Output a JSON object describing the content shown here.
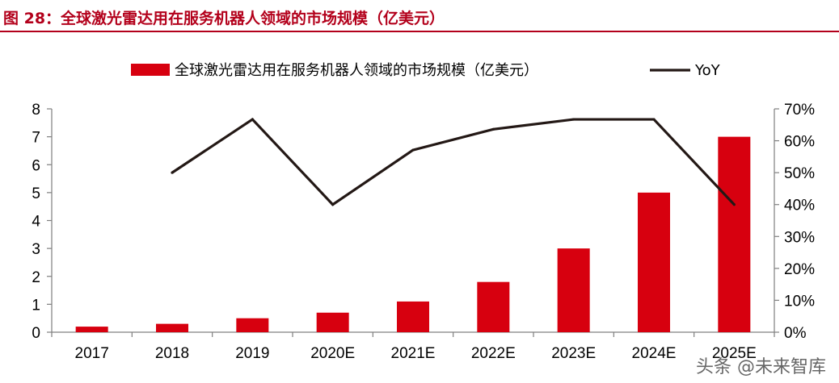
{
  "figure": {
    "title": "图 28：全球激光雷达用在服务机器人领域的市场规模（亿美元）"
  },
  "watermark": {
    "text": "头条 @未来智库"
  },
  "chart_data": {
    "type": "bar",
    "categories": [
      "2017",
      "2018",
      "2019",
      "2020E",
      "2021E",
      "2022E",
      "2023E",
      "2024E",
      "2025E"
    ],
    "series": [
      {
        "name": "全球激光雷达用在服务机器人领域的市场规模（亿美元）",
        "type": "bar",
        "axis": "left",
        "color": "#d7000f",
        "values": [
          0.2,
          0.3,
          0.5,
          0.7,
          1.1,
          1.8,
          3.0,
          5.0,
          7.0
        ]
      },
      {
        "name": "YoY",
        "type": "line",
        "axis": "right",
        "color": "#231815",
        "values": [
          null,
          0.5,
          0.667,
          0.4,
          0.571,
          0.636,
          0.667,
          0.667,
          0.4
        ]
      }
    ],
    "ylim_left": [
      0,
      8
    ],
    "yticks_left": [
      "0",
      "1",
      "2",
      "3",
      "4",
      "5",
      "6",
      "7",
      "8"
    ],
    "ylim_right": [
      0,
      0.7
    ],
    "yticks_right": [
      "0%",
      "10%",
      "20%",
      "30%",
      "40%",
      "50%",
      "60%",
      "70%"
    ],
    "legend_position": "top",
    "grid": false
  }
}
